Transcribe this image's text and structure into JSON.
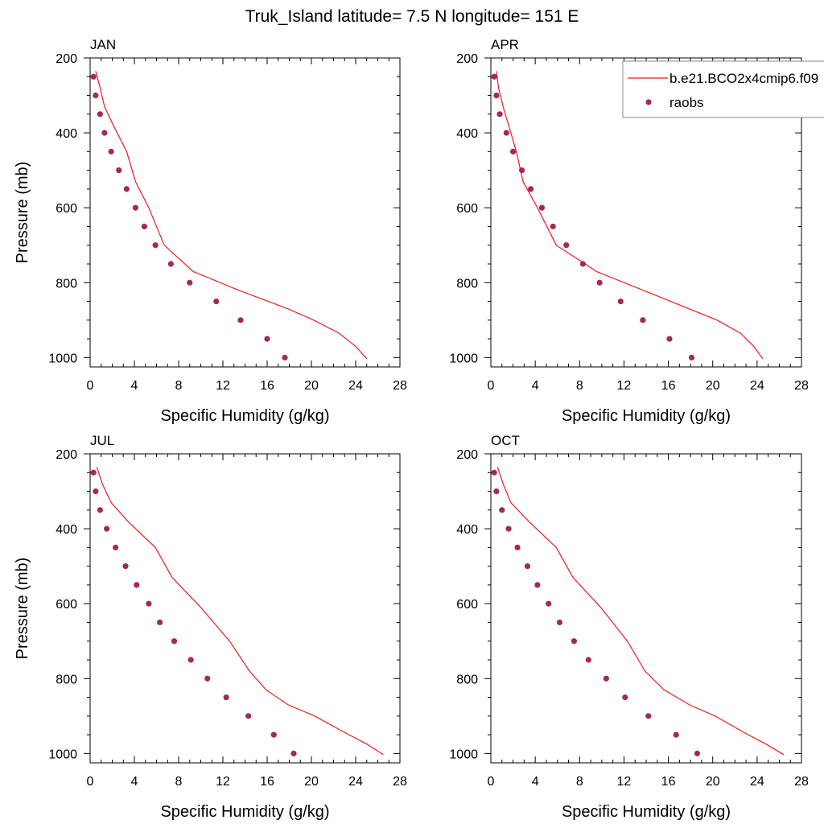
{
  "title": "Truk_Island  latitude= 7.5 N longitude= 151 E",
  "colors": {
    "model": "#ee1c1c",
    "obs": "#a32a55",
    "axis": "#000000"
  },
  "legend": {
    "model_label": "b.e21.BCO2x4cmip6.f09",
    "obs_label": "raobs",
    "placement": "top-right (APR panel)"
  },
  "chart_data": [
    {
      "type": "line",
      "panel": "JAN",
      "title": "JAN",
      "xlabel": "Specific Humidity (g/kg)",
      "ylabel": "Pressure (mb)",
      "xlim": [
        0,
        28
      ],
      "ylim": [
        1025,
        200
      ],
      "xticks": [
        0,
        4,
        8,
        12,
        16,
        20,
        24,
        28
      ],
      "yticks": [
        200,
        400,
        600,
        800,
        1000
      ],
      "series": [
        {
          "name": "b.e21.BCO2x4cmip6.f09",
          "style": "line",
          "points": [
            [
              0.5,
              235
            ],
            [
              0.9,
              280
            ],
            [
              1.3,
              330
            ],
            [
              2.1,
              380
            ],
            [
              3.3,
              450
            ],
            [
              4.1,
              530
            ],
            [
              5.3,
              600
            ],
            [
              6.7,
              700
            ],
            [
              9.3,
              770
            ],
            [
              13.4,
              820
            ],
            [
              17.9,
              870
            ],
            [
              20.2,
              900
            ],
            [
              22.5,
              935
            ],
            [
              24,
              970
            ],
            [
              25,
              1003
            ]
          ]
        },
        {
          "name": "raobs",
          "style": "markers",
          "points": [
            [
              0.3,
              250
            ],
            [
              0.5,
              300
            ],
            [
              0.9,
              350
            ],
            [
              1.3,
              400
            ],
            [
              1.9,
              450
            ],
            [
              2.6,
              500
            ],
            [
              3.3,
              550
            ],
            [
              4.1,
              600
            ],
            [
              4.9,
              650
            ],
            [
              5.9,
              700
            ],
            [
              7.3,
              750
            ],
            [
              9,
              800
            ],
            [
              11.4,
              850
            ],
            [
              13.6,
              900
            ],
            [
              16,
              950
            ],
            [
              17.6,
              1000
            ]
          ]
        }
      ]
    },
    {
      "type": "line",
      "panel": "APR",
      "title": "APR",
      "xlabel": "Specific Humidity (g/kg)",
      "ylabel": "",
      "xlim": [
        0,
        28
      ],
      "ylim": [
        1025,
        200
      ],
      "xticks": [
        0,
        4,
        8,
        12,
        16,
        20,
        24,
        28
      ],
      "yticks": [
        200,
        400,
        600,
        800,
        1000
      ],
      "series": [
        {
          "name": "b.e21.BCO2x4cmip6.f09",
          "style": "line",
          "points": [
            [
              0.5,
              235
            ],
            [
              0.7,
              280
            ],
            [
              1.1,
              330
            ],
            [
              1.6,
              380
            ],
            [
              2.3,
              450
            ],
            [
              2.9,
              530
            ],
            [
              4.2,
              600
            ],
            [
              5.9,
              700
            ],
            [
              8.5,
              750
            ],
            [
              9.5,
              770
            ],
            [
              13.7,
              820
            ],
            [
              17.9,
              870
            ],
            [
              20.4,
              900
            ],
            [
              22.5,
              935
            ],
            [
              23.7,
              970
            ],
            [
              24.5,
              1003
            ]
          ]
        },
        {
          "name": "raobs",
          "style": "markers",
          "points": [
            [
              0.3,
              250
            ],
            [
              0.5,
              300
            ],
            [
              0.8,
              350
            ],
            [
              1.4,
              400
            ],
            [
              2,
              450
            ],
            [
              2.8,
              500
            ],
            [
              3.6,
              550
            ],
            [
              4.6,
              600
            ],
            [
              5.6,
              650
            ],
            [
              6.8,
              700
            ],
            [
              8.3,
              750
            ],
            [
              9.8,
              800
            ],
            [
              11.7,
              850
            ],
            [
              13.7,
              900
            ],
            [
              16.1,
              950
            ],
            [
              18.1,
              1000
            ]
          ]
        }
      ]
    },
    {
      "type": "line",
      "panel": "JUL",
      "title": "JUL",
      "xlabel": "Specific Humidity (g/kg)",
      "ylabel": "Pressure (mb)",
      "xlim": [
        0,
        28
      ],
      "ylim": [
        1025,
        200
      ],
      "xticks": [
        0,
        4,
        8,
        12,
        16,
        20,
        24,
        28
      ],
      "yticks": [
        200,
        400,
        600,
        800,
        1000
      ],
      "series": [
        {
          "name": "b.e21.BCO2x4cmip6.f09",
          "style": "line",
          "points": [
            [
              0.6,
              235
            ],
            [
              1.1,
              280
            ],
            [
              1.9,
              330
            ],
            [
              3.4,
              380
            ],
            [
              5.9,
              450
            ],
            [
              7.4,
              530
            ],
            [
              10,
              610
            ],
            [
              12.6,
              700
            ],
            [
              14.4,
              780
            ],
            [
              15.9,
              830
            ],
            [
              17.9,
              870
            ],
            [
              20.3,
              900
            ],
            [
              23.4,
              950
            ],
            [
              25,
              975
            ],
            [
              26.5,
              1003
            ]
          ]
        },
        {
          "name": "raobs",
          "style": "markers",
          "points": [
            [
              0.3,
              250
            ],
            [
              0.5,
              300
            ],
            [
              0.9,
              350
            ],
            [
              1.5,
              400
            ],
            [
              2.3,
              450
            ],
            [
              3.2,
              500
            ],
            [
              4.2,
              550
            ],
            [
              5.3,
              600
            ],
            [
              6.3,
              650
            ],
            [
              7.6,
              700
            ],
            [
              9.1,
              750
            ],
            [
              10.6,
              800
            ],
            [
              12.3,
              850
            ],
            [
              14.3,
              900
            ],
            [
              16.6,
              950
            ],
            [
              18.4,
              1000
            ]
          ]
        }
      ]
    },
    {
      "type": "line",
      "panel": "OCT",
      "title": "OCT",
      "xlabel": "Specific Humidity (g/kg)",
      "ylabel": "",
      "xlim": [
        0,
        28
      ],
      "ylim": [
        1025,
        200
      ],
      "xticks": [
        0,
        4,
        8,
        12,
        16,
        20,
        24,
        28
      ],
      "yticks": [
        200,
        400,
        600,
        800,
        1000
      ],
      "series": [
        {
          "name": "b.e21.BCO2x4cmip6.f09",
          "style": "line",
          "points": [
            [
              0.6,
              235
            ],
            [
              1.1,
              280
            ],
            [
              1.8,
              330
            ],
            [
              3.4,
              380
            ],
            [
              5.9,
              450
            ],
            [
              7.4,
              530
            ],
            [
              9.9,
              610
            ],
            [
              12.3,
              700
            ],
            [
              13.9,
              780
            ],
            [
              15.6,
              830
            ],
            [
              17.9,
              870
            ],
            [
              20.2,
              900
            ],
            [
              23.2,
              950
            ],
            [
              24.8,
              975
            ],
            [
              26.4,
              1003
            ]
          ]
        },
        {
          "name": "raobs",
          "style": "markers",
          "points": [
            [
              0.3,
              250
            ],
            [
              0.5,
              300
            ],
            [
              1,
              350
            ],
            [
              1.6,
              400
            ],
            [
              2.4,
              450
            ],
            [
              3.3,
              500
            ],
            [
              4.2,
              550
            ],
            [
              5.2,
              600
            ],
            [
              6.2,
              650
            ],
            [
              7.5,
              700
            ],
            [
              8.8,
              750
            ],
            [
              10.4,
              800
            ],
            [
              12.1,
              850
            ],
            [
              14.2,
              900
            ],
            [
              16.7,
              950
            ],
            [
              18.6,
              1000
            ]
          ]
        }
      ]
    }
  ]
}
